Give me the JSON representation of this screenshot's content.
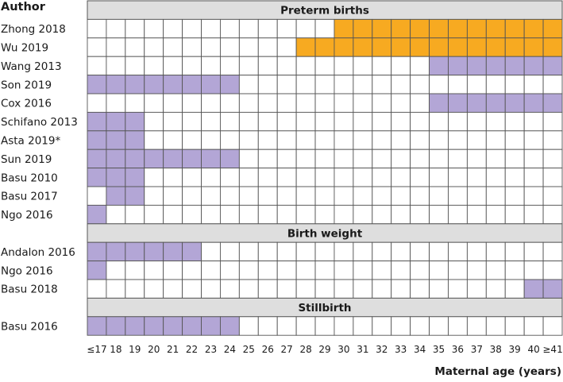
{
  "chart_data": {
    "type": "heatmap",
    "y_header": "Author",
    "xlabel": "Maternal age (years)",
    "x_categories": [
      "≤17",
      "18",
      "19",
      "20",
      "21",
      "22",
      "23",
      "24",
      "25",
      "26",
      "27",
      "28",
      "29",
      "30",
      "31",
      "32",
      "33",
      "34",
      "35",
      "36",
      "37",
      "38",
      "39",
      "40",
      "≥41"
    ],
    "legend_colors": {
      "purple": "#b3a6d6",
      "orange": "#f7aa21",
      "empty": "#ffffff",
      "section": "#dedede"
    },
    "sections": [
      {
        "title": "Preterm births",
        "rows": [
          {
            "author": "Zhong 2018",
            "cells": [
              {
                "from": "30",
                "to": "≥41",
                "color": "orange"
              }
            ]
          },
          {
            "author": "Wu 2019",
            "cells": [
              {
                "from": "28",
                "to": "≥41",
                "color": "orange"
              }
            ]
          },
          {
            "author": "Wang 2013",
            "cells": [
              {
                "from": "35",
                "to": "≥41",
                "color": "purple"
              }
            ]
          },
          {
            "author": "Son 2019",
            "cells": [
              {
                "from": "≤17",
                "to": "24",
                "color": "purple"
              }
            ]
          },
          {
            "author": "Cox 2016",
            "cells": [
              {
                "from": "35",
                "to": "≥41",
                "color": "purple"
              }
            ]
          },
          {
            "author": "Schifano 2013",
            "cells": [
              {
                "from": "≤17",
                "to": "19",
                "color": "purple"
              }
            ]
          },
          {
            "author": "Asta 2019*",
            "cells": [
              {
                "from": "≤17",
                "to": "19",
                "color": "purple"
              }
            ]
          },
          {
            "author": "Sun 2019",
            "cells": [
              {
                "from": "≤17",
                "to": "24",
                "color": "purple"
              }
            ]
          },
          {
            "author": "Basu 2010",
            "cells": [
              {
                "from": "≤17",
                "to": "19",
                "color": "purple"
              }
            ]
          },
          {
            "author": "Basu 2017",
            "cells": [
              {
                "from": "18",
                "to": "19",
                "color": "purple"
              }
            ]
          },
          {
            "author": "Ngo 2016",
            "cells": [
              {
                "from": "≤17",
                "to": "≤17",
                "color": "purple"
              }
            ]
          }
        ]
      },
      {
        "title": "Birth weight",
        "rows": [
          {
            "author": "Andalon 2016",
            "cells": [
              {
                "from": "≤17",
                "to": "22",
                "color": "purple"
              }
            ]
          },
          {
            "author": "Ngo 2016",
            "cells": [
              {
                "from": "≤17",
                "to": "≤17",
                "color": "purple"
              }
            ]
          },
          {
            "author": "Basu 2018",
            "cells": [
              {
                "from": "40",
                "to": "≥41",
                "color": "purple"
              }
            ]
          }
        ]
      },
      {
        "title": "Stillbirth",
        "rows": [
          {
            "author": "Basu 2016",
            "cells": [
              {
                "from": "≤17",
                "to": "24",
                "color": "purple"
              }
            ]
          }
        ]
      }
    ]
  }
}
